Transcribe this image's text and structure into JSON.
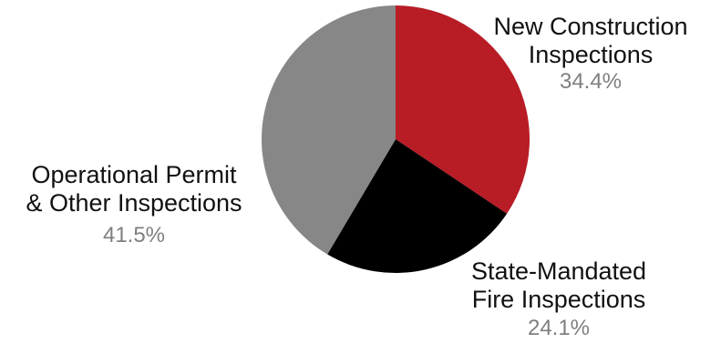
{
  "chart_data": {
    "type": "pie",
    "slices": [
      {
        "label_lines": [
          "New Construction",
          "Inspections"
        ],
        "value": 34.4,
        "value_label": "34.4%",
        "color": "#b81c25"
      },
      {
        "label_lines": [
          "State-Mandated",
          "Fire Inspections"
        ],
        "value": 24.1,
        "value_label": "24.1%",
        "color": "#000000"
      },
      {
        "label_lines": [
          "Operational Permit",
          "& Other Inspections"
        ],
        "value": 41.5,
        "value_label": "41.5%",
        "color": "#878787"
      }
    ],
    "start_angle": "12 o'clock",
    "direction": "clockwise",
    "value_label_color": "#7f7f7f"
  }
}
